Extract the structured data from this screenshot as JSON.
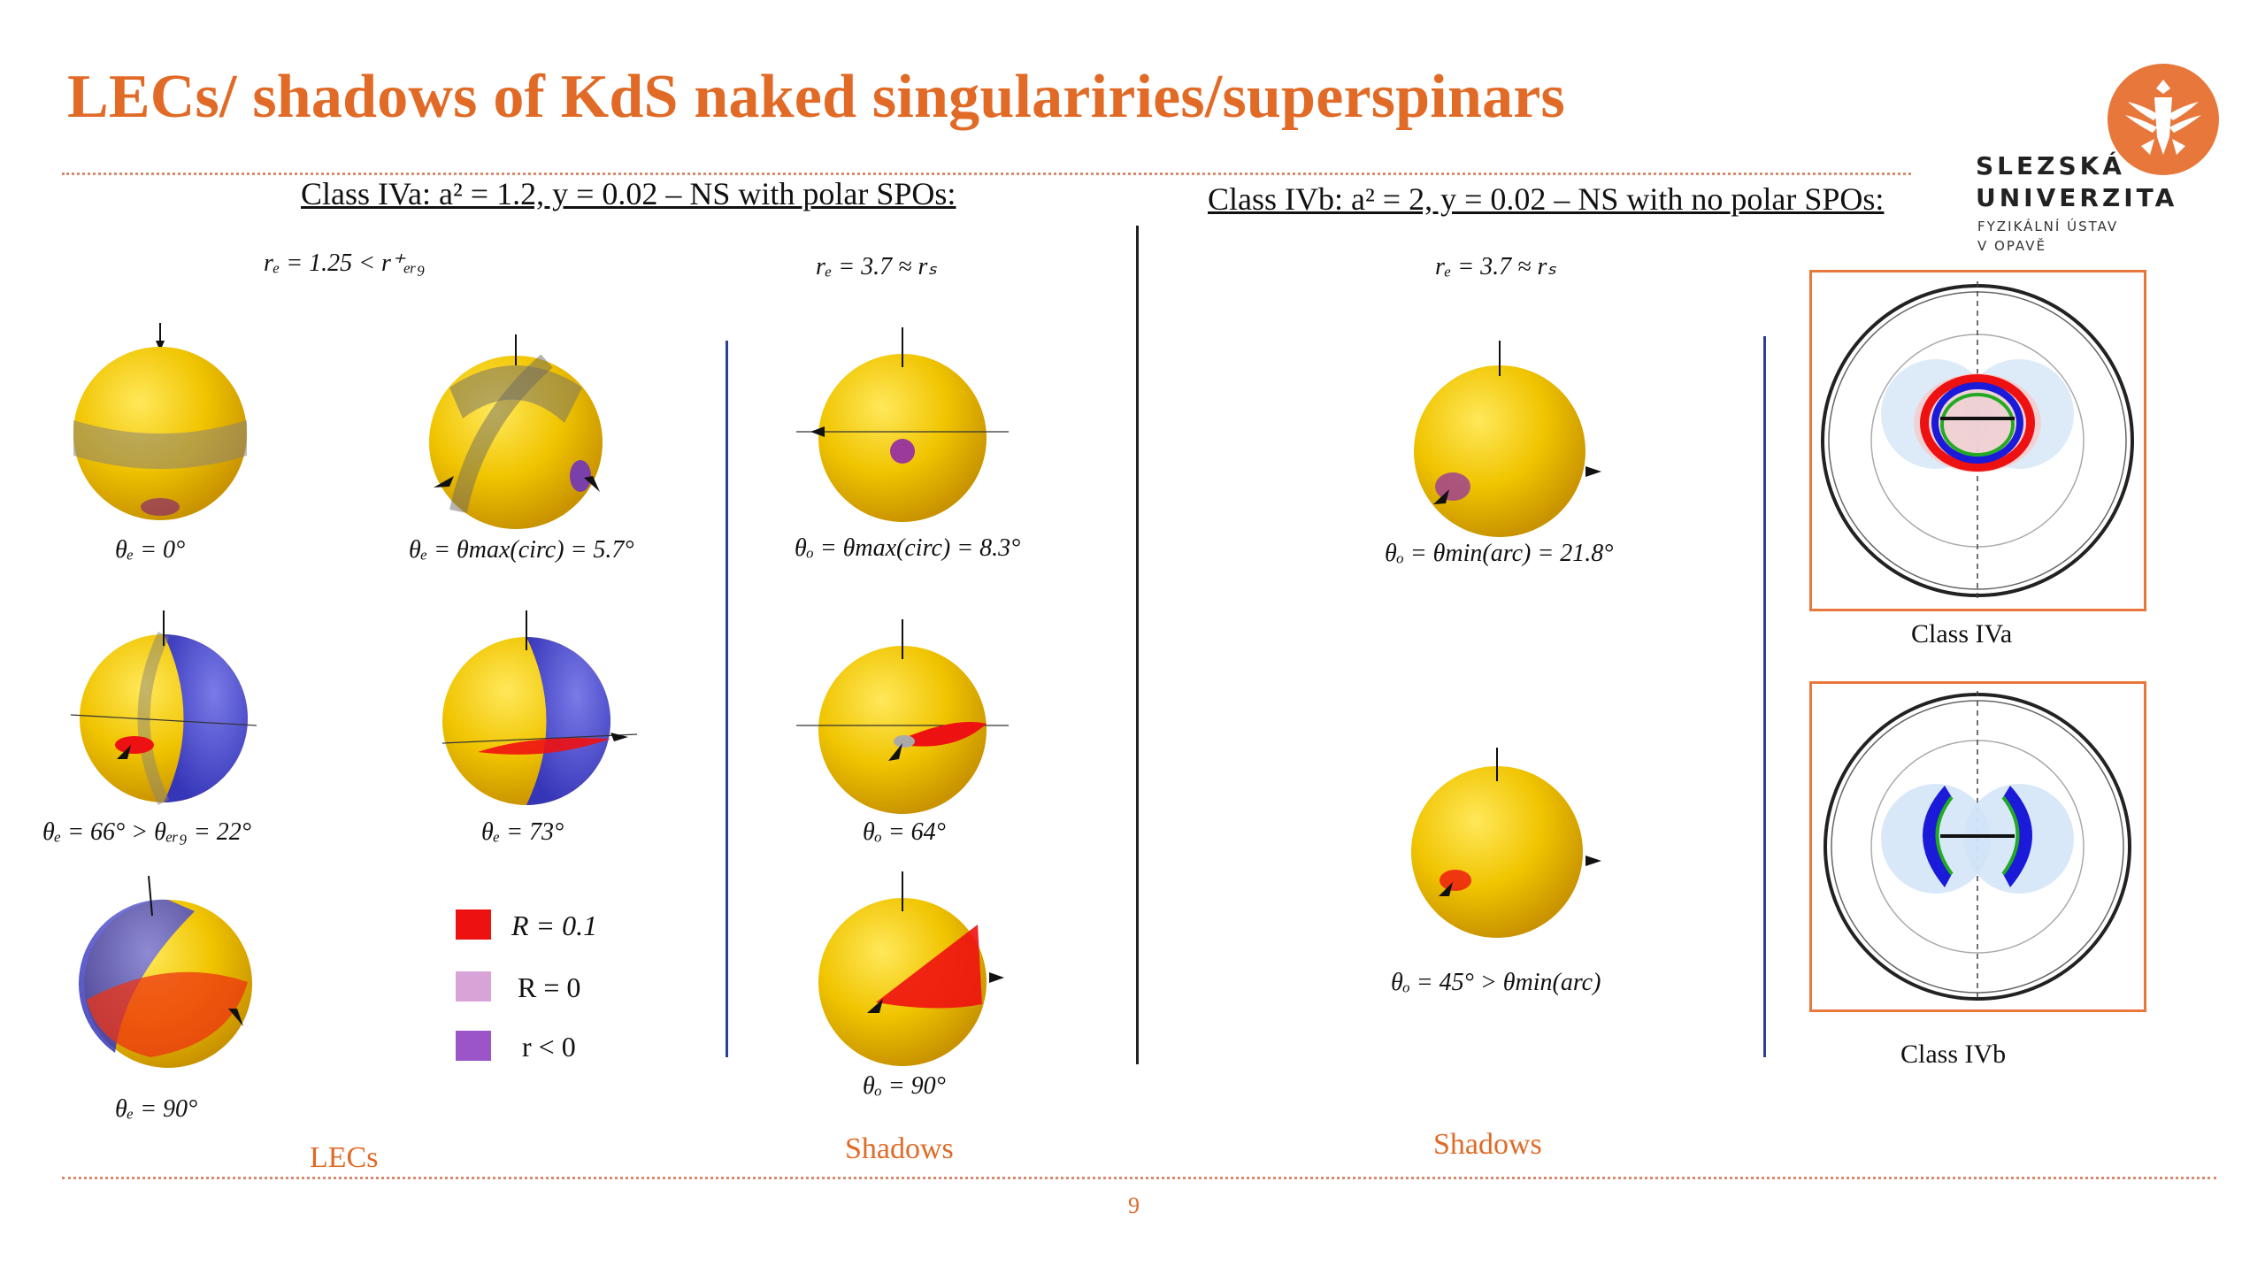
{
  "title": "LECs/ shadows of KdS naked singulariries/superspinars",
  "logo": {
    "line1": "SLEZSKÁ",
    "line2": "UNIVERZITA",
    "sub1": "FYZIKÁLNÍ ÚSTAV",
    "sub2": "V OPAVĚ"
  },
  "class_a": {
    "heading": "Class IVa: a² = 1.2, y = 0.02 – NS with polar SPOs:",
    "re_left": "rₑ = 1.25 < r⁺ₑᵣ₉",
    "re_right": "rₑ = 3.7 ≈ rₛ"
  },
  "class_b": {
    "heading": "Class IVb: a² = 2, y = 0.02 – NS with no polar SPOs:",
    "re": "rₑ = 3.7 ≈ rₛ"
  },
  "lec_captions": [
    "θₑ = 0°",
    "θₑ = θmax(circ) = 5.7°",
    "θₑ = 66° > θₑᵣ₉ = 22°",
    "θₑ = 73°",
    "θₑ = 90°"
  ],
  "shadow_a_captions": [
    "θₒ = θmax(circ) = 8.3°",
    "θₒ = 64°",
    "θₒ = 90°"
  ],
  "shadow_b_captions": [
    "θₒ = θmin(arc) = 21.8°",
    "θₒ = 45° > θmin(arc)"
  ],
  "legend": [
    {
      "label": "R = 0.1",
      "color": "#EE1111"
    },
    {
      "label": "R = 0",
      "color": "#D8A4D8"
    },
    {
      "label": "r < 0",
      "color": "#9B55C8"
    }
  ],
  "section_labels": {
    "lecs": "LECs",
    "shadows_a": "Shadows",
    "shadows_b": "Shadows"
  },
  "diagram_captions": {
    "a": "Class IVa",
    "b": "Class IVb"
  },
  "page_number": "9",
  "colors": {
    "accent": "#E06A26",
    "sphere": "#F0C400",
    "red": "#EE1111",
    "blue": "#3F3FD0"
  }
}
